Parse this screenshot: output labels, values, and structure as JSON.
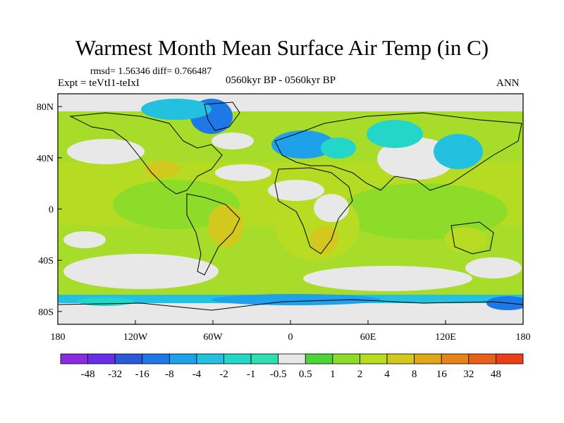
{
  "title": "Warmest Month Mean Surface Air Temp (in C)",
  "stats": "rmsd= 1.56346 diff= 0.766487",
  "expt": "Expt = teVtI1-teIxI",
  "period": "0560kyr BP - 0560kyr BP",
  "season": "ANN",
  "map": {
    "projection": "cylindrical-equidistant",
    "lon_range": [
      -180,
      180
    ],
    "lat_range": [
      -90,
      90
    ],
    "lat_ticks": [
      {
        "value": 80,
        "label": "80N"
      },
      {
        "value": 40,
        "label": "40N"
      },
      {
        "value": 0,
        "label": "0"
      },
      {
        "value": -40,
        "label": "40S"
      },
      {
        "value": -80,
        "label": "80S"
      }
    ],
    "lon_ticks": [
      {
        "value": -180,
        "label": "180"
      },
      {
        "value": -120,
        "label": "120W"
      },
      {
        "value": -60,
        "label": "60W"
      },
      {
        "value": 0,
        "label": "0"
      },
      {
        "value": 60,
        "label": "60E"
      },
      {
        "value": 120,
        "label": "120E"
      },
      {
        "value": 180,
        "label": "180"
      }
    ]
  },
  "colorbar": {
    "colors": [
      "#8a2be2",
      "#6a2ee8",
      "#2a5ad8",
      "#1e78e6",
      "#1ea0ea",
      "#24c0e0",
      "#24d6c8",
      "#2ee0b0",
      "#e8e8e8",
      "#4cd43a",
      "#8edc2a",
      "#b8dc22",
      "#d2c81e",
      "#e0a818",
      "#e6841a",
      "#e8601c",
      "#e8401a"
    ],
    "labels": [
      "-48",
      "-32",
      "-16",
      "-8",
      "-4",
      "-2",
      "-1",
      "-0.5",
      "0.5",
      "1",
      "2",
      "4",
      "8",
      "16",
      "32",
      "48"
    ]
  }
}
